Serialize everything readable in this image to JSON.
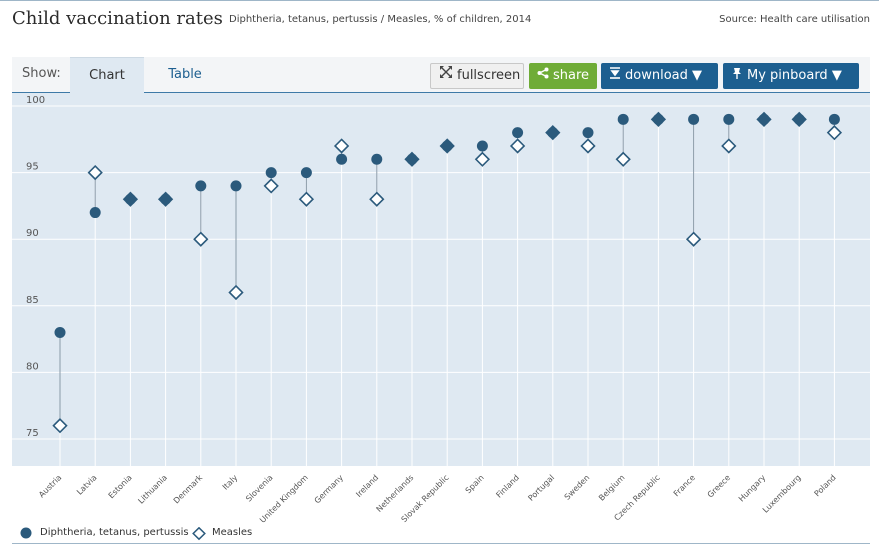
{
  "header": {
    "title": "Child vaccination rates",
    "subtitle": "Diphtheria, tetanus, pertussis / Measles, % of children, 2014",
    "source": "Source: Health care utilisation"
  },
  "toolbar": {
    "show_label": "Show:",
    "tabs": [
      {
        "label": "Chart",
        "active": true
      },
      {
        "label": "Table",
        "active": false
      }
    ],
    "fullscreen_label": "fullscreen",
    "share_label": "share",
    "download_label": "download ▼",
    "pinboard_label": "My pinboard ▼"
  },
  "colors": {
    "dtp": "#2b5a7c",
    "measles": "#2b5a7c",
    "plot_bg": "#dfe9f2",
    "share": "#6fac37",
    "primary": "#1d5f90"
  },
  "icons": {
    "fullscreen": "expand-arrows-icon",
    "share": "share-icon",
    "download": "download-icon",
    "pinboard": "pin-icon"
  },
  "chart_data": {
    "type": "scatter",
    "categories": [
      "Austria",
      "Latvia",
      "Estonia",
      "Lithuania",
      "Denmark",
      "Italy",
      "Slovenia",
      "United Kingdom",
      "Germany",
      "Ireland",
      "Netherlands",
      "Slovak Republic",
      "Spain",
      "Finland",
      "Portugal",
      "Sweden",
      "Belgium",
      "Czech Republic",
      "France",
      "Greece",
      "Hungary",
      "Luxembourg",
      "Poland"
    ],
    "series": [
      {
        "name": "Diphtheria, tetanus, pertussis",
        "marker": "circle",
        "values": [
          83,
          92,
          93,
          93,
          94,
          94,
          95,
          95,
          96,
          96,
          96,
          97,
          97,
          98,
          98,
          98,
          99,
          99,
          99,
          99,
          99,
          99,
          99
        ]
      },
      {
        "name": "Measles",
        "marker": "diamond",
        "values": [
          76,
          95,
          93,
          93,
          90,
          86,
          94,
          93,
          97,
          93,
          96,
          97,
          96,
          97,
          98,
          97,
          96,
          99,
          90,
          97,
          99,
          99,
          98
        ]
      }
    ],
    "y_ticks": [
      75,
      80,
      85,
      90,
      95,
      100
    ],
    "ylim": [
      73.5,
      101
    ],
    "grid": true,
    "legend_position": "bottom-left"
  }
}
